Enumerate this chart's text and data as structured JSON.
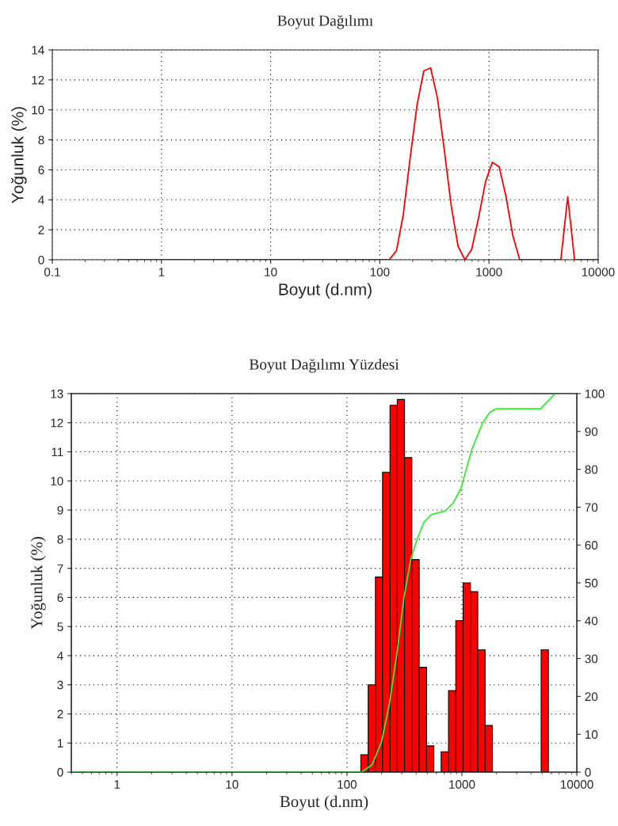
{
  "chart_data": [
    {
      "type": "line",
      "title": "Boyut Dağılımı",
      "xlabel": "Boyut (d.nm)",
      "ylabel": "Yoğunluk (%)",
      "x": [
        0.4,
        122,
        142,
        164,
        189,
        219,
        253,
        292,
        337,
        390,
        451,
        521,
        602,
        695,
        803,
        929,
        1073,
        1240,
        1433,
        1655,
        1912,
        4552,
        5261,
        6079,
        10000
      ],
      "series": [
        {
          "color": "#ff0000",
          "values": [
            0,
            0,
            0.6,
            3.0,
            6.7,
            10.3,
            12.6,
            12.8,
            10.8,
            7.3,
            3.6,
            0.9,
            0,
            0.7,
            2.8,
            5.2,
            6.5,
            6.2,
            4.2,
            1.6,
            0,
            0,
            4.2,
            0,
            0
          ]
        }
      ],
      "log": "x",
      "xlim": [
        0.1,
        10000
      ],
      "xticks": [
        0.1,
        1,
        10,
        100,
        1000,
        10000
      ],
      "ylim": [
        0,
        14
      ],
      "yticks": [
        0,
        2,
        4,
        6,
        8,
        10,
        12,
        14
      ],
      "grid": true
    },
    {
      "type": "histogram",
      "title": "Boyut Dağılımı Yüzdesi",
      "xlabel": "Boyut (d.nm)",
      "ylabel": "Yoğunluk (%)",
      "bins": [
        132,
        153,
        177,
        204,
        237,
        274,
        317,
        367,
        425,
        493,
        570,
        660,
        765,
        885,
        1025,
        1187,
        1374,
        1591,
        1843,
        4894,
        5655
      ],
      "series": [
        {
          "type": "histogram",
          "color": "#ff0000",
          "values": [
            0.6,
            3.0,
            6.7,
            10.3,
            12.6,
            12.8,
            10.8,
            7.3,
            3.6,
            0.9,
            0,
            0.7,
            2.8,
            5.2,
            6.5,
            6.2,
            4.2,
            1.6,
            0,
            4.2
          ]
        },
        {
          "type": "line",
          "axis": "y2",
          "color": "#33ee33",
          "x": [
            0.4,
            134,
            166,
            200,
            234,
            274,
            313,
            358,
            402,
            467,
            542,
            714,
            837,
            982,
            1214,
            1501,
            1742,
            2011,
            4829,
            6471,
            10000
          ],
          "values": [
            0,
            0,
            2,
            8,
            18,
            32,
            46,
            56,
            61,
            66,
            68,
            69,
            71,
            75,
            85,
            92,
            95,
            96,
            96,
            100,
            100
          ]
        }
      ],
      "log": "x",
      "xlim": [
        0.4,
        10000
      ],
      "xticks": [
        1,
        10,
        100,
        1000,
        10000
      ],
      "ylim": [
        0,
        13
      ],
      "yticks": [
        0,
        1,
        2,
        3,
        4,
        5,
        6,
        7,
        8,
        9,
        10,
        11,
        12,
        13
      ],
      "y2lim": [
        0,
        100
      ],
      "y2ticks": [
        0,
        10,
        20,
        30,
        40,
        50,
        60,
        70,
        80,
        90,
        100
      ],
      "grid": true
    }
  ]
}
